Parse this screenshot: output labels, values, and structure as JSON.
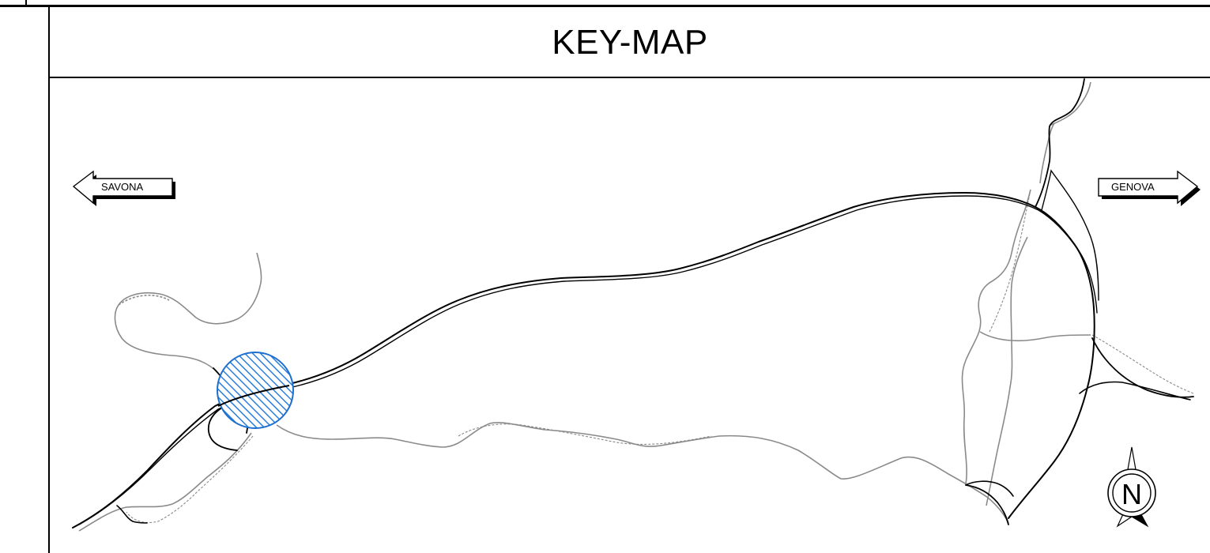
{
  "title": "KEY-MAP",
  "labels": {
    "west": "SAVONA",
    "east": "GENOVA",
    "north": "N"
  },
  "colors": {
    "highway": "#000000",
    "local_road": "#8a8a8a",
    "highlight_fill": "#2a7fdc",
    "highlight_stroke": "#1d6fd0"
  },
  "icons": [
    "west-arrow-icon",
    "east-arrow-icon",
    "north-arrow-icon"
  ]
}
